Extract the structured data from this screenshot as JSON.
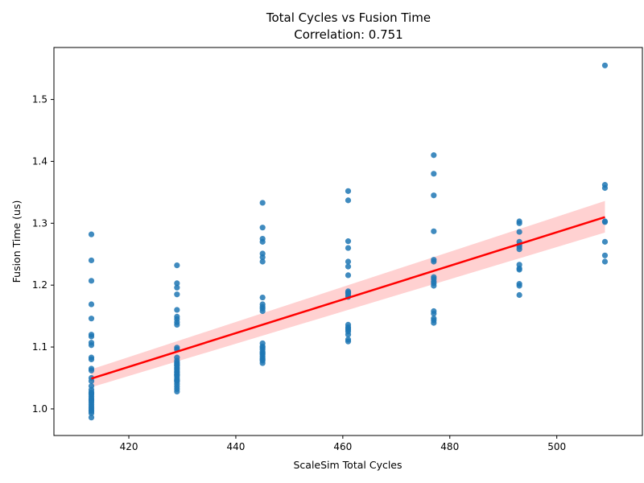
{
  "chart_data": {
    "type": "scatter",
    "title": "Total Cycles vs Fusion Time",
    "subtitle": "Correlation: 0.751",
    "xlabel": "ScaleSim Total Cycles",
    "ylabel": "Fusion Time (us)",
    "xlim": [
      406,
      516
    ],
    "ylim": [
      0.957,
      1.584
    ],
    "xticks": [
      420,
      440,
      460,
      480,
      500
    ],
    "yticks": [
      1.0,
      1.1,
      1.2,
      1.3,
      1.4,
      1.5
    ],
    "xtick_labels": [
      "420",
      "440",
      "460",
      "480",
      "500"
    ],
    "ytick_labels": [
      "1.0",
      "1.1",
      "1.2",
      "1.3",
      "1.4",
      "1.5"
    ],
    "grid": false,
    "colors": {
      "points": "#1f77b4",
      "regression": "#ff0000",
      "band": "#ffb3b3"
    },
    "points": {
      "x": [
        413,
        413,
        413,
        413,
        413,
        413,
        413,
        413,
        413,
        413,
        413,
        413,
        413,
        413,
        413,
        413,
        413,
        413,
        413,
        413,
        413,
        413,
        413,
        413,
        413,
        413,
        413,
        413,
        413,
        413,
        413,
        413,
        429,
        429,
        429,
        429,
        429,
        429,
        429,
        429,
        429,
        429,
        429,
        429,
        429,
        429,
        429,
        429,
        429,
        429,
        429,
        429,
        429,
        429,
        429,
        429,
        429,
        429,
        429,
        429,
        429,
        429,
        429,
        429,
        429,
        445,
        445,
        445,
        445,
        445,
        445,
        445,
        445,
        445,
        445,
        445,
        445,
        445,
        445,
        445,
        445,
        445,
        445,
        445,
        445,
        445,
        445,
        445,
        445,
        461,
        461,
        461,
        461,
        461,
        461,
        461,
        461,
        461,
        461,
        461,
        461,
        461,
        461,
        461,
        461,
        461,
        461,
        461,
        461,
        477,
        477,
        477,
        477,
        477,
        477,
        477,
        477,
        477,
        477,
        477,
        477,
        477,
        477,
        477,
        477,
        493,
        493,
        493,
        493,
        493,
        493,
        493,
        493,
        493,
        493,
        493,
        493,
        493,
        509,
        509,
        509,
        509,
        509,
        509,
        509,
        509
      ],
      "y": [
        1.282,
        1.24,
        1.207,
        1.169,
        1.146,
        1.12,
        1.117,
        1.107,
        1.103,
        1.083,
        1.08,
        1.065,
        1.062,
        1.05,
        1.045,
        1.037,
        1.031,
        1.027,
        1.023,
        1.02,
        1.017,
        1.013,
        1.01,
        1.007,
        1.004,
        1.001,
        0.998,
        0.996,
        0.993,
        0.986,
        1.015,
        1.025,
        1.232,
        1.203,
        1.196,
        1.185,
        1.16,
        1.149,
        1.145,
        1.14,
        1.136,
        1.099,
        1.096,
        1.083,
        1.078,
        1.075,
        1.071,
        1.067,
        1.063,
        1.059,
        1.056,
        1.053,
        1.05,
        1.046,
        1.044,
        1.04,
        1.036,
        1.032,
        1.028,
        1.06,
        1.073,
        1.065,
        1.047,
        1.055,
        1.07,
        1.333,
        1.293,
        1.275,
        1.27,
        1.251,
        1.245,
        1.238,
        1.18,
        1.169,
        1.165,
        1.162,
        1.158,
        1.106,
        1.101,
        1.096,
        1.092,
        1.088,
        1.085,
        1.082,
        1.078,
        1.074,
        1.09,
        1.099,
        1.08,
        1.352,
        1.337,
        1.271,
        1.26,
        1.238,
        1.23,
        1.216,
        1.19,
        1.187,
        1.184,
        1.181,
        1.136,
        1.132,
        1.128,
        1.125,
        1.12,
        1.112,
        1.109,
        1.188,
        1.13,
        1.41,
        1.38,
        1.345,
        1.287,
        1.241,
        1.238,
        1.213,
        1.21,
        1.206,
        1.203,
        1.199,
        1.158,
        1.154,
        1.146,
        1.143,
        1.139,
        1.303,
        1.3,
        1.286,
        1.27,
        1.265,
        1.258,
        1.233,
        1.227,
        1.202,
        1.199,
        1.184,
        1.262,
        1.225,
        1.555,
        1.362,
        1.357,
        1.303,
        1.27,
        1.248,
        1.238,
        1.302
      ]
    },
    "regression": {
      "x": [
        413,
        509
      ],
      "y": [
        1.049,
        1.31
      ],
      "ci_lower": [
        1.035,
        1.285
      ],
      "ci_upper": [
        1.064,
        1.336
      ]
    }
  }
}
